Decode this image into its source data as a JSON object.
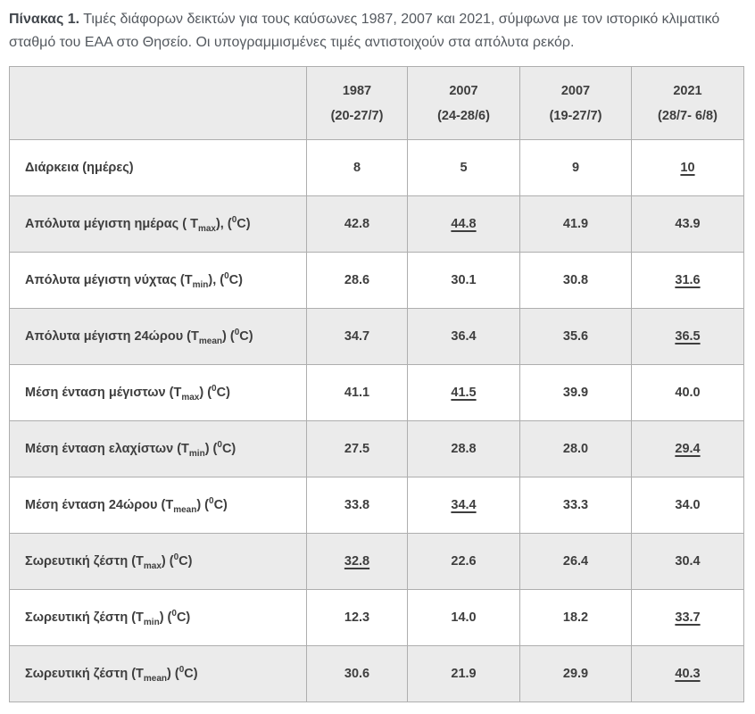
{
  "caption": {
    "label": "Πίνακας 1.",
    "text": " Τιμές διάφορων δεικτών για τους καύσωνες 1987, 2007 και 2021, σύμφωνα με τον ιστορικό κλιματικό σταθμό του ΕΑΑ στο Θησείο. Οι υπογραμμισμένες τιμές αντιστοιχούν στα απόλυτα ρεκόρ."
  },
  "colors": {
    "row_alt_background": "#ebebeb",
    "header_background": "#ebebeb",
    "border": "#aeaeae",
    "table_text": "#3e3e3e",
    "caption_text": "#54595f"
  },
  "chart_data": {
    "type": "table",
    "note": "~x~ = subscript, ^x^ = superscript; record=true means underlined (absolute record)",
    "columns": [
      {
        "year": "1987",
        "dates": "(20-27/7)"
      },
      {
        "year": "2007",
        "dates": "(24-28/6)"
      },
      {
        "year": "2007",
        "dates": "(19-27/7)"
      },
      {
        "year": "2021",
        "dates": "(28/7- 6/8)"
      }
    ],
    "rows": [
      {
        "label": "Διάρκεια (ημέρες)",
        "values": [
          {
            "v": "8"
          },
          {
            "v": "5"
          },
          {
            "v": "9"
          },
          {
            "v": "10",
            "record": true
          }
        ]
      },
      {
        "label": "Απόλυτα μέγιστη ημέρας ( T~max~), (^0^C)",
        "values": [
          {
            "v": "42.8"
          },
          {
            "v": "44.8",
            "record": true
          },
          {
            "v": "41.9"
          },
          {
            "v": "43.9"
          }
        ]
      },
      {
        "label": "Απόλυτα μέγιστη νύχτας (T~min~), (^0^C)",
        "values": [
          {
            "v": "28.6"
          },
          {
            "v": "30.1"
          },
          {
            "v": "30.8"
          },
          {
            "v": "31.6",
            "record": true
          }
        ]
      },
      {
        "label": "Απόλυτα μέγιστη 24ώρου (T~mean~) (^0^C)",
        "values": [
          {
            "v": "34.7"
          },
          {
            "v": "36.4"
          },
          {
            "v": "35.6"
          },
          {
            "v": "36.5",
            "record": true
          }
        ]
      },
      {
        "label": "Μέση ένταση μέγιστων (T~max~) (^0^C)",
        "values": [
          {
            "v": "41.1"
          },
          {
            "v": "41.5",
            "record": true
          },
          {
            "v": "39.9"
          },
          {
            "v": "40.0"
          }
        ]
      },
      {
        "label": "Μέση ένταση ελαχίστων (T~min~) (^0^C)",
        "values": [
          {
            "v": "27.5"
          },
          {
            "v": "28.8"
          },
          {
            "v": "28.0"
          },
          {
            "v": "29.4",
            "record": true
          }
        ]
      },
      {
        "label": "Μέση ένταση 24ώρου (T~mean~) (^0^C)",
        "values": [
          {
            "v": "33.8"
          },
          {
            "v": "34.4",
            "record": true
          },
          {
            "v": "33.3"
          },
          {
            "v": "34.0"
          }
        ]
      },
      {
        "label": "Σωρευτική ζέστη (T~max~) (^0^C)",
        "values": [
          {
            "v": "32.8",
            "record": true
          },
          {
            "v": "22.6"
          },
          {
            "v": "26.4"
          },
          {
            "v": "30.4"
          }
        ]
      },
      {
        "label": "Σωρευτική ζέστη (T~min~) (^0^C)",
        "values": [
          {
            "v": "12.3"
          },
          {
            "v": "14.0"
          },
          {
            "v": "18.2"
          },
          {
            "v": "33.7",
            "record": true
          }
        ]
      },
      {
        "label": "Σωρευτική ζέστη (T~mean~) (^0^C)",
        "values": [
          {
            "v": "30.6"
          },
          {
            "v": "21.9"
          },
          {
            "v": "29.9"
          },
          {
            "v": "40.3",
            "record": true
          }
        ]
      }
    ]
  }
}
